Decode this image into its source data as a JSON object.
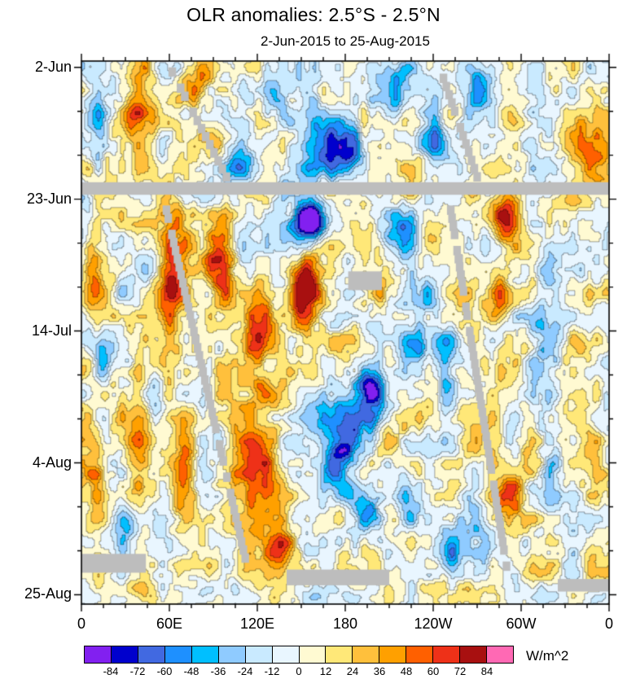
{
  "figure": {
    "title": "OLR anomalies: 2.5°S - 2.5°N",
    "subtitle": "2-Jun-2015 to 25-Aug-2015"
  },
  "chart_data": {
    "type": "heatmap",
    "title": "OLR anomalies: 2.5°S - 2.5°N",
    "subtitle": "2-Jun-2015 to 25-Aug-2015",
    "x_axis": {
      "range": [
        0,
        360
      ],
      "minor_step": 15,
      "ticks": [
        {
          "lon": 0,
          "label": "0"
        },
        {
          "lon": 60,
          "label": "60E"
        },
        {
          "lon": 120,
          "label": "120E"
        },
        {
          "lon": 180,
          "label": "180"
        },
        {
          "lon": 240,
          "label": "120W"
        },
        {
          "lon": 300,
          "label": "60W"
        },
        {
          "lon": 360,
          "label": "0"
        }
      ]
    },
    "y_axis": {
      "range": [
        0,
        84
      ],
      "direction": "down",
      "minor_step": 7,
      "day_reference": "days since 2-Jun-2015",
      "ticks": [
        {
          "day": 0,
          "label": "2-Jun"
        },
        {
          "day": 21,
          "label": "23-Jun"
        },
        {
          "day": 42,
          "label": "14-Jul"
        },
        {
          "day": 63,
          "label": "4-Aug"
        },
        {
          "day": 84,
          "label": "25-Aug"
        }
      ]
    },
    "colorbar": {
      "units": "W/m^2",
      "levels": [
        -84,
        -72,
        -60,
        -48,
        -36,
        -24,
        -12,
        0,
        12,
        24,
        36,
        48,
        60,
        72,
        84
      ],
      "colors": [
        "#8220f0",
        "#0000cd",
        "#4169e1",
        "#1e90ff",
        "#00bfff",
        "#8fcbff",
        "#c9eaff",
        "#e9f6ff",
        "#fffad2",
        "#ffe878",
        "#ffc03c",
        "#ffa000",
        "#ff6000",
        "#ee3118",
        "#a81010",
        "#ff69b4"
      ]
    },
    "missing_color": "#bdbdbd",
    "field_model": {
      "description": "OLR anomaly field (W/m^2) reconstructed from visible features: gaussian anomaly centers plus small-scale noise, discretized to the colorbar levels",
      "bias": 4,
      "clip": [
        -95,
        83
      ],
      "noise": [
        {
          "scale_lon": 14,
          "scale_day": 4,
          "amp": 24,
          "seed": 11
        },
        {
          "scale_lon": 5.5,
          "scale_day": 1.8,
          "amp": 14,
          "seed": 77
        }
      ],
      "blobs": [
        {
          "lon": 167,
          "day": 12,
          "amp": -78,
          "rlon": 18,
          "rday": 5
        },
        {
          "lon": 183,
          "day": 13,
          "amp": -50,
          "rlon": 8,
          "rday": 3
        },
        {
          "lon": 215,
          "day": 4,
          "amp": -62,
          "rlon": 14,
          "rday": 4
        },
        {
          "lon": 130,
          "day": 4,
          "amp": -45,
          "rlon": 10,
          "rday": 4
        },
        {
          "lon": 108,
          "day": 14,
          "amp": -45,
          "rlon": 9,
          "rday": 5
        },
        {
          "lon": 240,
          "day": 12,
          "amp": -45,
          "rlon": 8,
          "rday": 5
        },
        {
          "lon": 272,
          "day": 4,
          "amp": -48,
          "rlon": 10,
          "rday": 4
        },
        {
          "lon": 157,
          "day": 24.5,
          "amp": -85,
          "rlon": 8,
          "rday": 3
        },
        {
          "lon": 148,
          "day": 26,
          "amp": -55,
          "rlon": 16,
          "rday": 4
        },
        {
          "lon": 218,
          "day": 26,
          "amp": -50,
          "rlon": 12,
          "rday": 4
        },
        {
          "lon": 228,
          "day": 37,
          "amp": -42,
          "rlon": 12,
          "rday": 6
        },
        {
          "lon": 198,
          "day": 51,
          "amp": -88,
          "rlon": 10,
          "rday": 4
        },
        {
          "lon": 225,
          "day": 47,
          "amp": -45,
          "rlon": 10,
          "rday": 4
        },
        {
          "lon": 178,
          "day": 58,
          "amp": -62,
          "rlon": 18,
          "rday": 6
        },
        {
          "lon": 175,
          "day": 64,
          "amp": -55,
          "rlon": 10,
          "rday": 4
        },
        {
          "lon": 195,
          "day": 71,
          "amp": -60,
          "rlon": 12,
          "rday": 4
        },
        {
          "lon": 222,
          "day": 68,
          "amp": -38,
          "rlon": 8,
          "rday": 4
        },
        {
          "lon": 318,
          "day": 45,
          "amp": -32,
          "rlon": 9,
          "rday": 18
        },
        {
          "lon": 12,
          "day": 12,
          "amp": -40,
          "rlon": 5,
          "rday": 6
        },
        {
          "lon": 15,
          "day": 47,
          "amp": -38,
          "rlon": 5,
          "rday": 4
        },
        {
          "lon": 50,
          "day": 52,
          "amp": -38,
          "rlon": 5,
          "rday": 5
        },
        {
          "lon": 250,
          "day": 47,
          "amp": -42,
          "rlon": 8,
          "rday": 7
        },
        {
          "lon": 252,
          "day": 78,
          "amp": -58,
          "rlon": 9,
          "rday": 4
        },
        {
          "lon": 268,
          "day": 76,
          "amp": -40,
          "rlon": 12,
          "rday": 5
        },
        {
          "lon": 30,
          "day": 75,
          "amp": -40,
          "rlon": 8,
          "rday": 5
        },
        {
          "lon": 38,
          "day": 7,
          "amp": 45,
          "rlon": 10,
          "rday": 7
        },
        {
          "lon": 80,
          "day": 3,
          "amp": 40,
          "rlon": 8,
          "rday": 4
        },
        {
          "lon": 348,
          "day": 14,
          "amp": 40,
          "rlon": 12,
          "rday": 6
        },
        {
          "lon": 8,
          "day": 32,
          "amp": 45,
          "rlon": 6,
          "rday": 6
        },
        {
          "lon": 10,
          "day": 66,
          "amp": 45,
          "rlon": 7,
          "rday": 6
        },
        {
          "lon": 62,
          "day": 34,
          "amp": 72,
          "rlon": 9,
          "rday": 8
        },
        {
          "lon": 95,
          "day": 30,
          "amp": 68,
          "rlon": 9,
          "rday": 6
        },
        {
          "lon": 122,
          "day": 40,
          "amp": 62,
          "rlon": 10,
          "rday": 6
        },
        {
          "lon": 152,
          "day": 36,
          "amp": 85,
          "rlon": 12,
          "rday": 5
        },
        {
          "lon": 118,
          "day": 62,
          "amp": 55,
          "rlon": 16,
          "rday": 14
        },
        {
          "lon": 70,
          "day": 62,
          "amp": 50,
          "rlon": 8,
          "rday": 8
        },
        {
          "lon": 135,
          "day": 77,
          "amp": 62,
          "rlon": 10,
          "rday": 5
        },
        {
          "lon": 40,
          "day": 60,
          "amp": 48,
          "rlon": 10,
          "rday": 10
        },
        {
          "lon": 288,
          "day": 24,
          "amp": 55,
          "rlon": 9,
          "rday": 4
        },
        {
          "lon": 285,
          "day": 36,
          "amp": 40,
          "rlon": 7,
          "rday": 4
        },
        {
          "lon": 293,
          "day": 68,
          "amp": 58,
          "rlon": 9,
          "rday": 5
        },
        {
          "lon": 205,
          "day": 36,
          "amp": 30,
          "rlon": 6,
          "rday": 3
        },
        {
          "lon": 340,
          "day": 55,
          "amp": 22,
          "rlon": 12,
          "rday": 10
        }
      ]
    },
    "missing_regions": {
      "bands": [
        {
          "lon": [
            0,
            360
          ],
          "day": [
            18.3,
            20.3
          ]
        }
      ],
      "patches": [
        {
          "lon": [
            182,
            205
          ],
          "day": [
            32.5,
            35.5
          ]
        },
        {
          "lon": [
            0,
            44
          ],
          "day": [
            77.5,
            80.5
          ]
        },
        {
          "lon": [
            140,
            210
          ],
          "day": [
            80,
            82.5
          ]
        },
        {
          "lon": [
            325,
            360
          ],
          "day": [
            81.5,
            83.5
          ]
        }
      ],
      "streaks": [
        {
          "lon0": 62,
          "day0": 0,
          "lon1": 99,
          "day1": 18
        },
        {
          "lon0": 58,
          "day0": 22,
          "lon1": 113,
          "day1": 80
        },
        {
          "lon0": 247,
          "day0": 1,
          "lon1": 270,
          "day1": 18
        },
        {
          "lon0": 252,
          "day0": 22,
          "lon1": 290,
          "day1": 80
        }
      ]
    }
  }
}
